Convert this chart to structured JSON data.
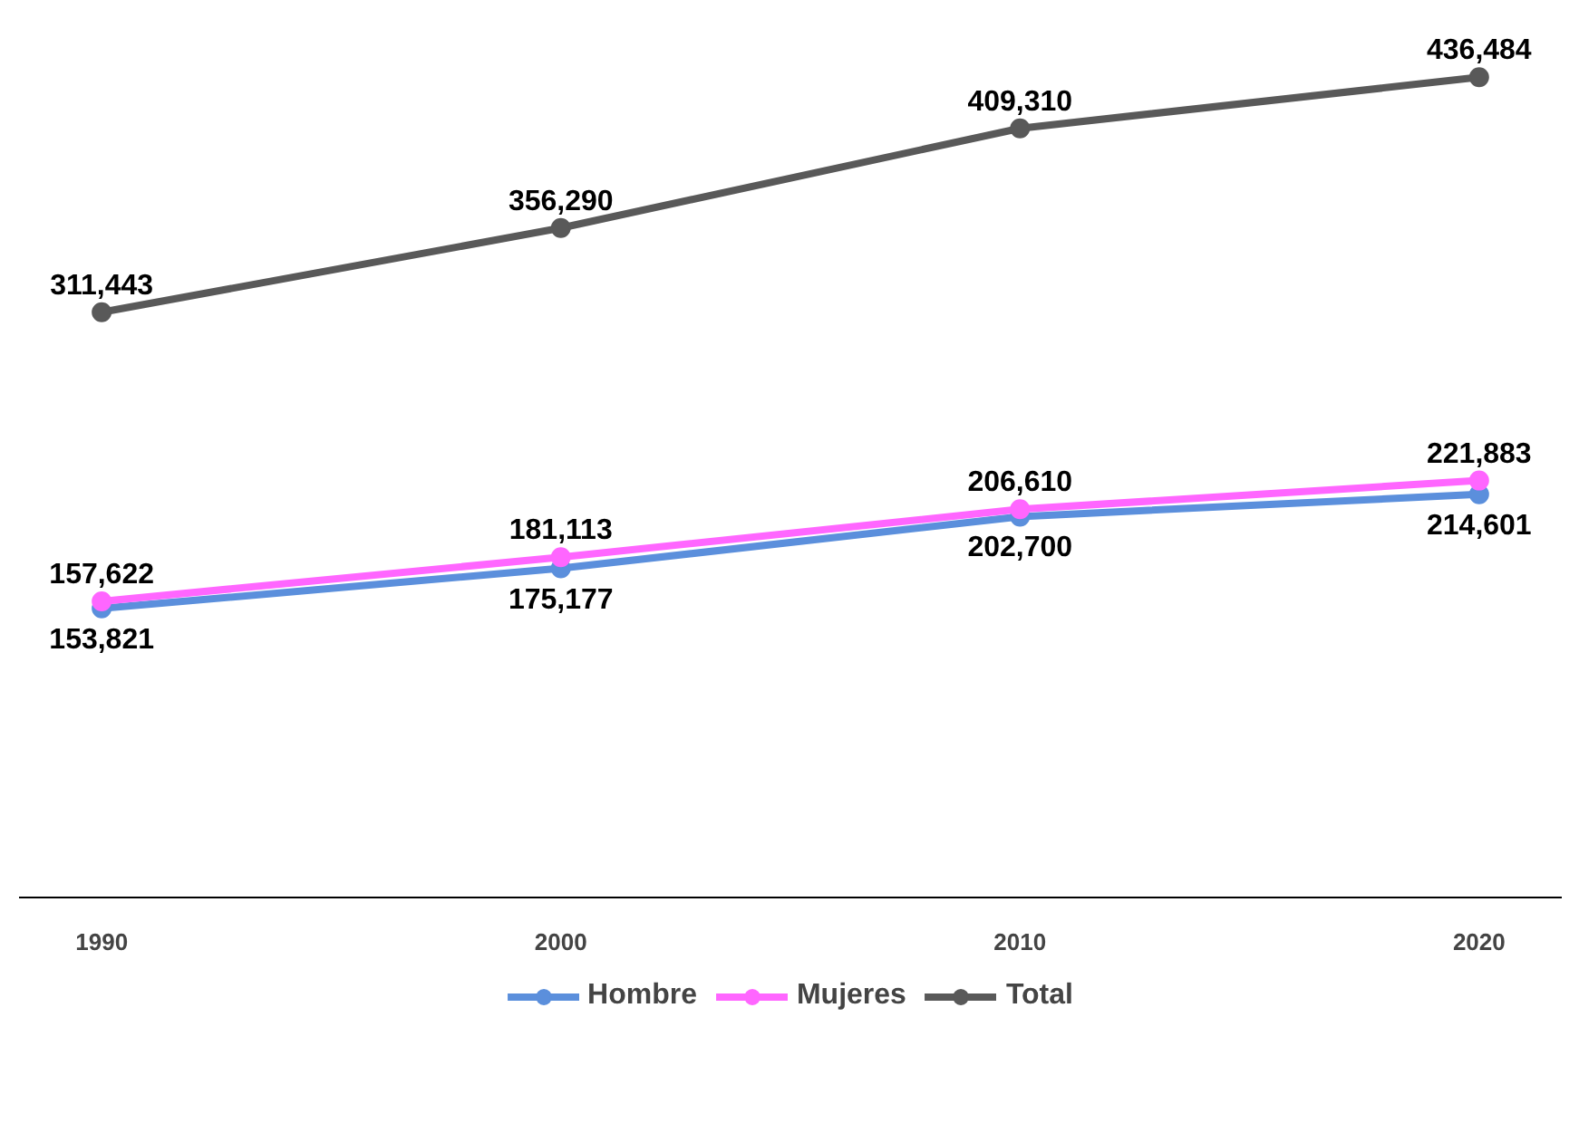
{
  "chart_data": {
    "type": "line",
    "categories": [
      "1990",
      "2000",
      "2010",
      "2020"
    ],
    "series": [
      {
        "name": "Hombre",
        "color": "#5b8fdc",
        "values": [
          153821,
          175177,
          202700,
          214601
        ],
        "value_labels": [
          "153,821",
          "175,177",
          "202,700",
          "214,601"
        ]
      },
      {
        "name": "Mujeres",
        "color": "#ff66ff",
        "values": [
          157622,
          181113,
          206610,
          221883
        ],
        "value_labels": [
          "157,622",
          "181,113",
          "206,610",
          "221,883"
        ]
      },
      {
        "name": "Total",
        "color": "#595959",
        "values": [
          311443,
          356290,
          409310,
          436484
        ],
        "value_labels": [
          "311,443",
          "356,290",
          "409,310",
          "436,484"
        ]
      }
    ],
    "tick_labels": "x",
    "legend": "bottom",
    "marker": "circle",
    "line_style": "solid",
    "grid": false
  }
}
